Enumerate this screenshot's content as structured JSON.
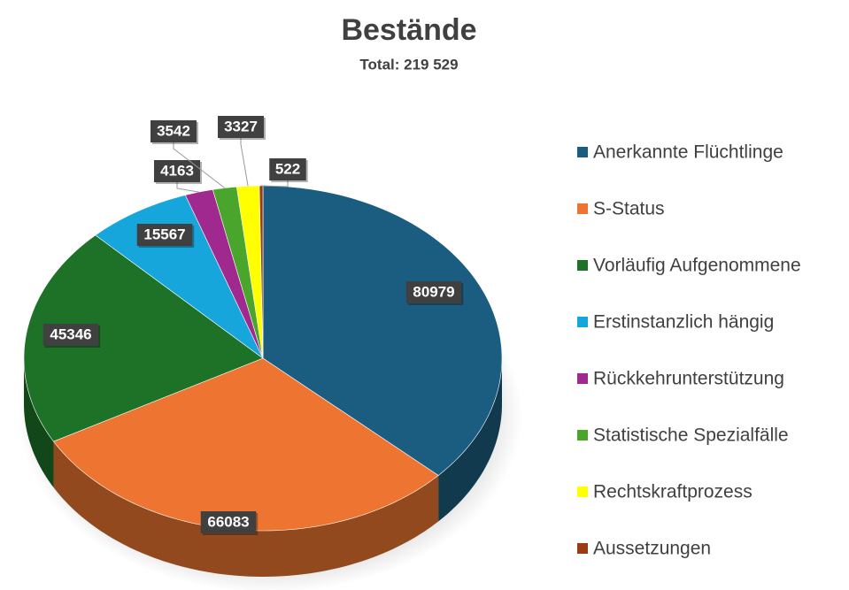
{
  "chart_data": {
    "type": "pie",
    "title": "Bestände",
    "subtitle": "Total: 219 529",
    "categories": [
      "Anerkannte Flüchtlinge",
      "S-Status",
      "Vorläufig Aufgenommene",
      "Erstinstanzlich hängig",
      "Rückkehrunterstützung",
      "Statistische Spezialfälle",
      "Rechtskraftprozess",
      "Aussetzungen"
    ],
    "values": [
      80979,
      66083,
      45346,
      15567,
      4163,
      3542,
      3327,
      522
    ],
    "colors": [
      "#1b5d80",
      "#ed7531",
      "#1d7228",
      "#17a6dc",
      "#a0298f",
      "#4aa52c",
      "#ffff00",
      "#9c3a12"
    ],
    "legend": "right"
  }
}
